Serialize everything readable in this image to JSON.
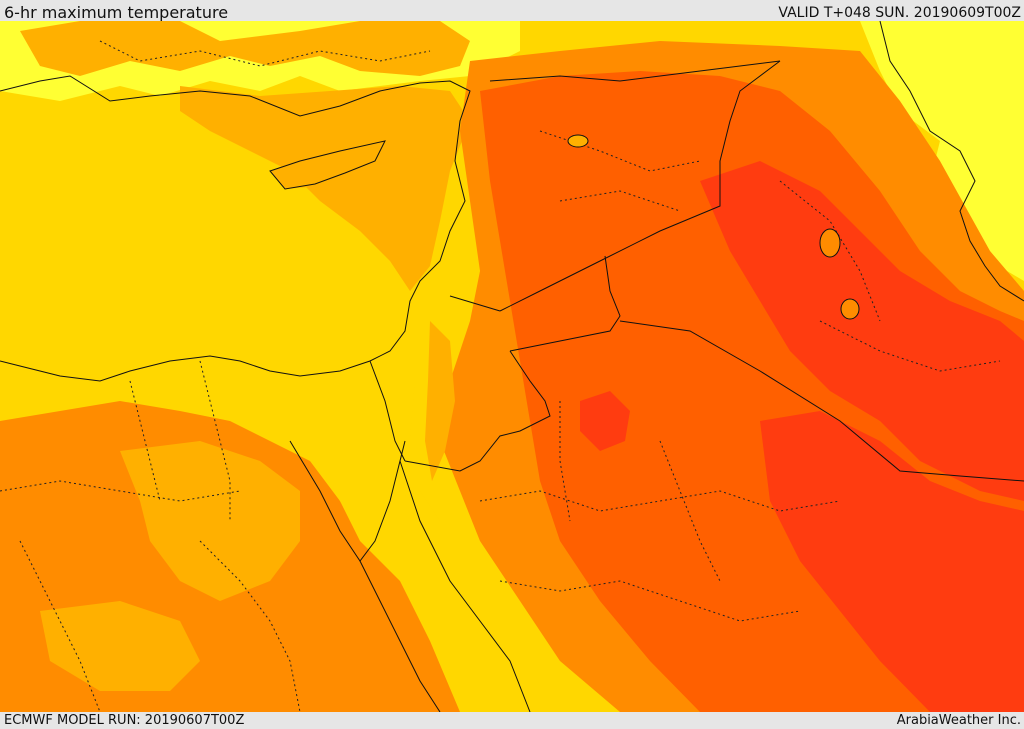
{
  "header": {
    "title": "6-hr maximum temperature",
    "valid": "VALID T+048 SUN. 20190609T00Z"
  },
  "footer": {
    "model_run": "ECMWF MODEL RUN: 20190607T00Z",
    "credit": "ArabiaWeather Inc."
  },
  "map": {
    "region": "Eastern Mediterranean and Middle East",
    "field": "6-hr maximum temperature",
    "color_scale": [
      "#ffff33",
      "#ffd700",
      "#ffb000",
      "#ff8c00",
      "#ff6000",
      "#ff3c10"
    ]
  }
}
